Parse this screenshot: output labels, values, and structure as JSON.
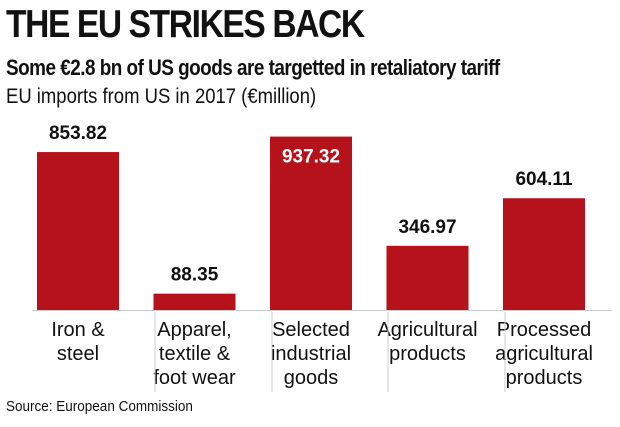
{
  "header": {
    "title": "THE EU STRIKES BACK",
    "subtitle": "Some €2.8 bn of US goods are targetted in retaliatory tariff",
    "description": "EU imports from US in 2017 (€million)"
  },
  "footer": {
    "source": "Source: European Commission"
  },
  "chart_data": {
    "type": "bar",
    "categories": [
      [
        "Iron &",
        "steel"
      ],
      [
        "Apparel,",
        "textile &",
        "foot wear"
      ],
      [
        "Selected",
        "industrial",
        "goods"
      ],
      [
        "Agricultural",
        "products"
      ],
      [
        "Processed",
        "agricultural",
        "products"
      ]
    ],
    "values": [
      853.82,
      88.35,
      937.32,
      346.97,
      604.11
    ],
    "value_labels": [
      "853.82",
      "88.35",
      "937.32",
      "346.97",
      "604.11"
    ],
    "ylim": [
      0,
      1000
    ],
    "grid": false,
    "colors": {
      "bar": "#b5121b",
      "label_inside": "#ffffff",
      "label_outside": "#111111",
      "axis": "#cccccc"
    }
  }
}
